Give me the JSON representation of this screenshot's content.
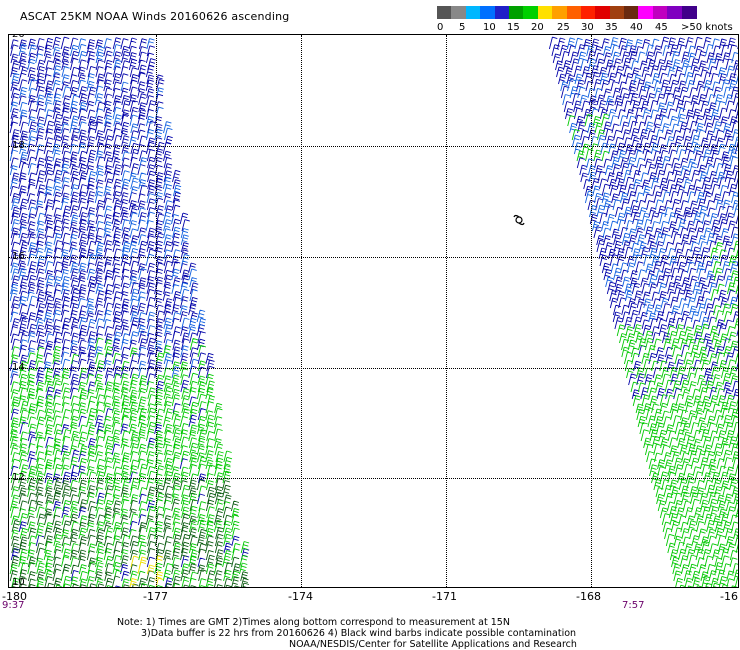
{
  "title": "ASCAT 25KM NOAA Winds 20160626 ascending",
  "colorbar": {
    "swatches": [
      "#555555",
      "#888888",
      "#00b7ff",
      "#0070ff",
      "#2020c8",
      "#00a000",
      "#00d000",
      "#ffe000",
      "#ffa000",
      "#ff6000",
      "#ff2000",
      "#e00000",
      "#a04010",
      "#6a2a10",
      "#ff00ff",
      "#c000c0",
      "#8000c0",
      "#40008a"
    ],
    "labels": [
      "0",
      "5",
      "10",
      "15",
      "20",
      "25",
      "30",
      "35",
      "40",
      "45",
      ">50 knots"
    ]
  },
  "map": {
    "lat_labels": [
      "20",
      "18",
      "16",
      "14",
      "12",
      "10"
    ],
    "lon_labels": [
      "-180",
      "-177",
      "-174",
      "-171",
      "-168",
      "-16"
    ],
    "storm_symbol": "cyclone-symbol"
  },
  "times": {
    "left": "9:37",
    "right": "7:57"
  },
  "notes": [
    "Note: 1) Times are GMT 2)Times along bottom correspond to measurement at 15N",
    "3)Data buffer is 22 hrs from 20160626 4) Black wind barbs indicate possible contamination",
    "NOAA/NESDIS/Center for Satellite Applications and Research"
  ],
  "colors": {
    "calm_blue": "#0000a8",
    "mid_blue": "#1060e0",
    "green": "#00c800",
    "yellow": "#f0e000"
  }
}
